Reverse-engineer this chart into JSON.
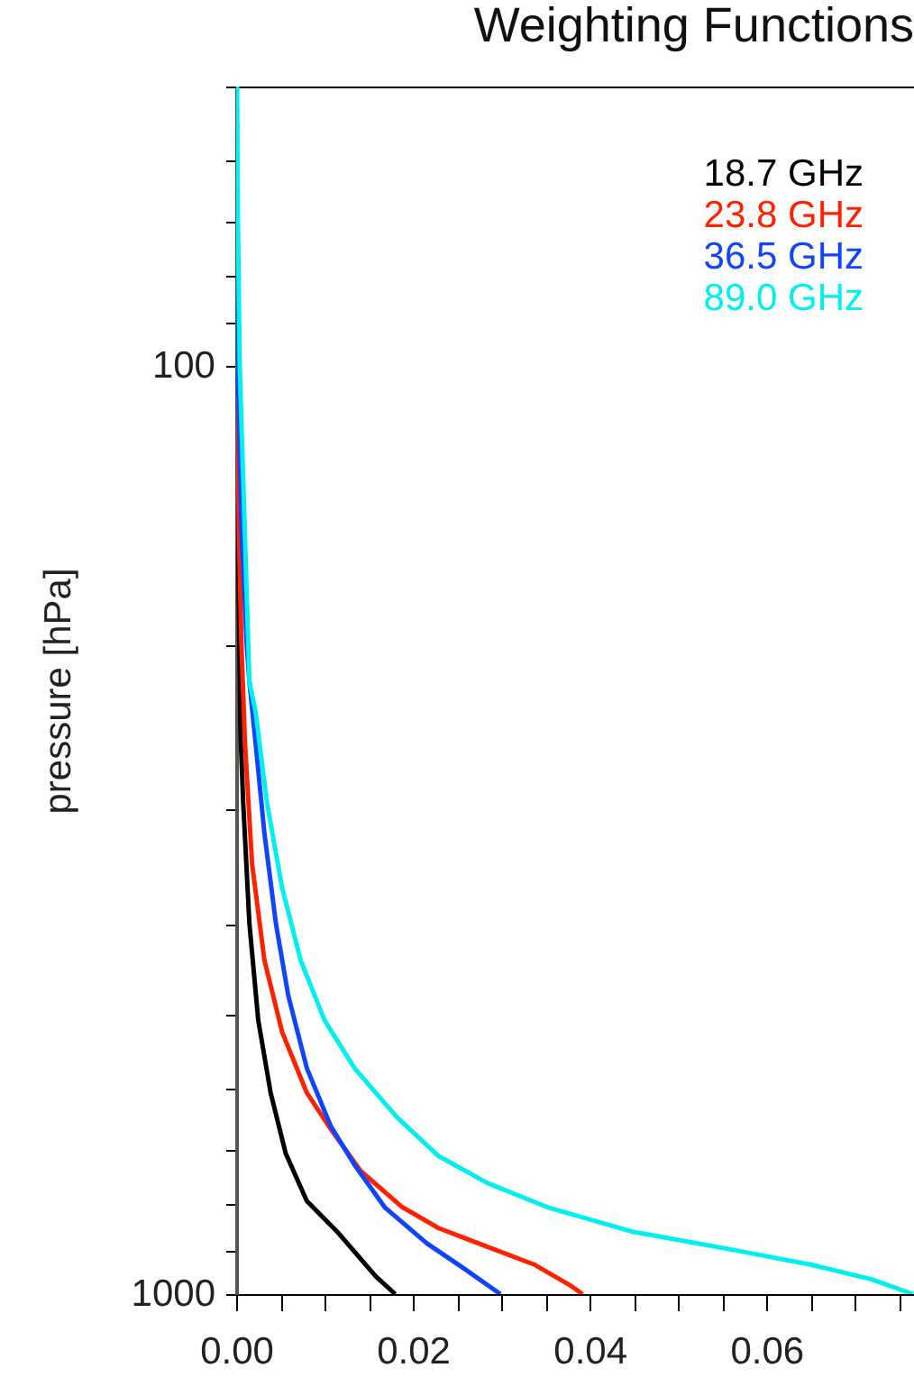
{
  "chart_data": {
    "type": "line",
    "title": "Weighting Functions",
    "ylabel": "pressure [hPa]",
    "log": "y",
    "legend": "top right",
    "xlim": [
      0,
      0.0767
    ],
    "xticks": [
      {
        "value": 0,
        "label": "0.00"
      },
      {
        "value": 0.005,
        "label": null
      },
      {
        "value": 0.01,
        "label": null
      },
      {
        "value": 0.015,
        "label": null
      },
      {
        "value": 0.02,
        "label": "0.02"
      },
      {
        "value": 0.025,
        "label": null
      },
      {
        "value": 0.03,
        "label": null
      },
      {
        "value": 0.035,
        "label": null
      },
      {
        "value": 0.04,
        "label": "0.04"
      },
      {
        "value": 0.045,
        "label": null
      },
      {
        "value": 0.05,
        "label": null
      },
      {
        "value": 0.055,
        "label": null
      },
      {
        "value": 0.06,
        "label": "0.06"
      },
      {
        "value": 0.065,
        "label": null
      },
      {
        "value": 0.07,
        "label": null
      },
      {
        "value": 0.075,
        "label": null
      }
    ],
    "ylim": [
      1000,
      50
    ],
    "yticks": [
      {
        "value": 50,
        "label": null
      },
      {
        "value": 60,
        "label": null
      },
      {
        "value": 70,
        "label": null
      },
      {
        "value": 80,
        "label": null
      },
      {
        "value": 90,
        "label": null
      },
      100,
      {
        "value": 200,
        "label": null
      },
      {
        "value": 300,
        "label": null
      },
      {
        "value": 400,
        "label": null
      },
      {
        "value": 500,
        "label": null
      },
      {
        "value": 600,
        "label": null
      },
      {
        "value": 700,
        "label": null
      },
      {
        "value": 800,
        "label": null
      },
      {
        "value": 900,
        "label": null
      },
      1000
    ],
    "series": [
      {
        "name": "18.7 GHz",
        "color": "#000000",
        "x": [
          0,
          0.0001,
          0.0002,
          0.0005,
          0.0008,
          0.0015,
          0.0025,
          0.0039,
          0.0056,
          0.008,
          0.0114,
          0.0158,
          0.018
        ],
        "values": [
          50,
          100,
          150,
          250,
          296,
          399,
          507,
          607,
          705,
          794,
          856,
          957,
          1000
        ]
      },
      {
        "name": "23.8 GHz",
        "color": "#ff2200",
        "x": [
          0,
          0.0001,
          0.0003,
          0.0006,
          0.001,
          0.0018,
          0.0032,
          0.0052,
          0.008,
          0.0107,
          0.0141,
          0.0188,
          0.0229,
          0.0284,
          0.0338,
          0.0379,
          0.0392
        ],
        "values": [
          50,
          100,
          150,
          200,
          255,
          344,
          437,
          522,
          607,
          664,
          737,
          806,
          849,
          889,
          930,
          980,
          1000
        ]
      },
      {
        "name": "36.5 GHz",
        "color": "#1144ff",
        "x": [
          0,
          0.0002,
          0.0006,
          0.0012,
          0.0015,
          0.0022,
          0.0032,
          0.0045,
          0.0059,
          0.008,
          0.0107,
          0.0134,
          0.0168,
          0.0216,
          0.0256,
          0.0299
        ],
        "values": [
          50,
          100,
          150,
          200,
          219,
          255,
          319,
          399,
          477,
          571,
          659,
          726,
          806,
          882,
          936,
          1000
        ]
      },
      {
        "name": "89.0 GHz",
        "color": "#00f0f0",
        "x": [
          0.0001,
          0.0002,
          0.0004,
          0.0015,
          0.0022,
          0.0035,
          0.0052,
          0.0073,
          0.01,
          0.0134,
          0.0182,
          0.0229,
          0.0284,
          0.0352,
          0.0447,
          0.0562,
          0.0651,
          0.0719,
          0.0766
        ],
        "values": [
          50,
          70,
          100,
          219,
          236,
          296,
          365,
          437,
          507,
          571,
          645,
          710,
          759,
          806,
          856,
          896,
          930,
          964,
          1000
        ]
      }
    ]
  }
}
